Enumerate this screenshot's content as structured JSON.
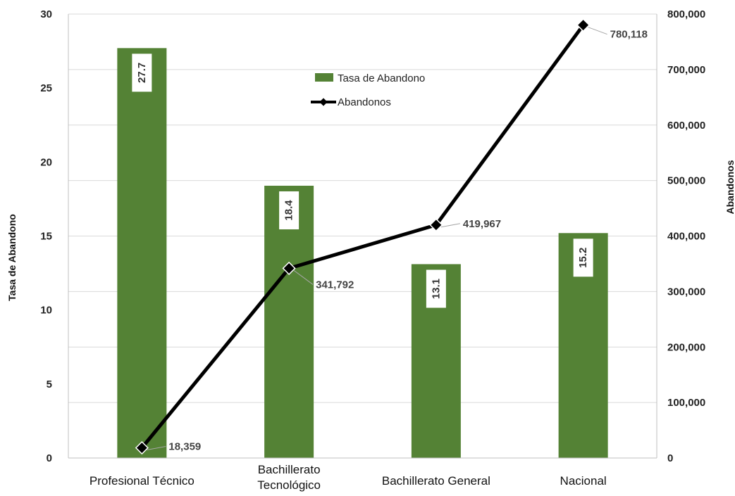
{
  "chart_data": {
    "type": "bar",
    "categories": [
      "Profesional Técnico",
      "Bachillerato Tecnológico",
      "Bachillerato General",
      "Nacional"
    ],
    "category_lines": [
      [
        "Profesional Técnico"
      ],
      [
        "Bachillerato",
        "Tecnológico"
      ],
      [
        "Bachillerato General"
      ],
      [
        "Nacional"
      ]
    ],
    "series": [
      {
        "name": "Tasa de Abandono",
        "type": "bar",
        "axis": "left",
        "values": [
          27.7,
          18.4,
          13.1,
          15.2
        ],
        "labels": [
          "27.7",
          "18.4",
          "13.1",
          "15.2"
        ],
        "color": "#548235"
      },
      {
        "name": "Abandonos",
        "type": "line",
        "axis": "right",
        "values": [
          18359,
          341792,
          419967,
          780118
        ],
        "labels": [
          "18,359",
          "341,792",
          "419,967",
          "780,118"
        ],
        "color": "#000000"
      }
    ],
    "ylabel": "Tasa de Abandono",
    "y2label": "Abandonos",
    "ylim": [
      0,
      30
    ],
    "y2lim": [
      0,
      800000
    ],
    "yticks": [
      "0",
      "5",
      "10",
      "15",
      "20",
      "25",
      "30"
    ],
    "y2ticks": [
      "0",
      "100,000",
      "200,000",
      "300,000",
      "400,000",
      "500,000",
      "600,000",
      "700,000",
      "800,000"
    ],
    "grid": true,
    "legend_position": "top-center"
  }
}
